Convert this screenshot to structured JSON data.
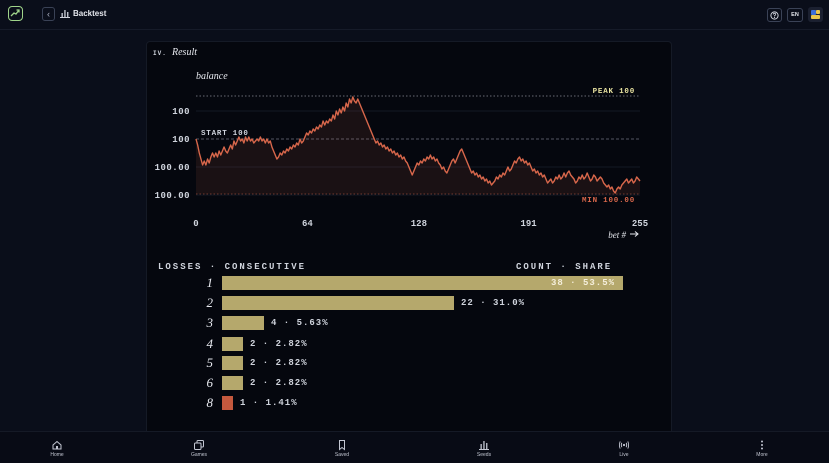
{
  "header": {
    "title": "Backtest",
    "lang": "EN"
  },
  "section": {
    "number": "IV.",
    "title": "Result"
  },
  "chart_data": {
    "type": "line",
    "ylabel": "balance",
    "xlabel": "bet #",
    "x_ticks": [
      "0",
      "64",
      "128",
      "191",
      "255"
    ],
    "y_ticks": [
      "100",
      "100",
      "100.00",
      "100.00"
    ],
    "xlim": [
      0,
      255
    ],
    "peak_label": "PEAK 100",
    "start_label": "START 100",
    "min_label": "MIN 100.00",
    "series": [
      {
        "values": [
          0,
          -3,
          -7,
          -10,
          -13,
          -11,
          -13,
          -10,
          -12,
          -9,
          -7,
          -9,
          -7,
          -9,
          -6,
          -8,
          -6,
          -4,
          -6,
          -7,
          -5,
          -3,
          -5,
          -1,
          -3,
          -1,
          1,
          -1,
          0,
          -2,
          1,
          -1,
          1,
          -1,
          0,
          -2,
          -1,
          0,
          -1,
          1,
          -1,
          0,
          -2,
          0,
          -2,
          -1,
          -4,
          -6,
          -8,
          -10,
          -9,
          -7,
          -8,
          -6,
          -7,
          -5,
          -6,
          -4,
          -5,
          -3,
          -4,
          -2,
          -3,
          0,
          -2,
          -1,
          1,
          3,
          2,
          4,
          3,
          5,
          4,
          6,
          5,
          7,
          6,
          9,
          7,
          9,
          8,
          10,
          9,
          12,
          10,
          14,
          12,
          15,
          13,
          16,
          14,
          18,
          16,
          20,
          18,
          21,
          19,
          18,
          20,
          18,
          16,
          14,
          12,
          10,
          8,
          6,
          4,
          2,
          0,
          -2,
          -1,
          -3,
          -2,
          -4,
          -3,
          -5,
          -4,
          -6,
          -5,
          -7,
          -6,
          -8,
          -7,
          -9,
          -8,
          -10,
          -9,
          -11,
          -12,
          -14,
          -16,
          -18,
          -16,
          -14,
          -12,
          -13,
          -11,
          -12,
          -10,
          -11,
          -9,
          -10,
          -8,
          -10,
          -9,
          -11,
          -10,
          -12,
          -13,
          -15,
          -14,
          -16,
          -17,
          -15,
          -13,
          -11,
          -10,
          -12,
          -10,
          -8,
          -6,
          -5,
          -7,
          -9,
          -11,
          -13,
          -15,
          -17,
          -16,
          -18,
          -17,
          -19,
          -18,
          -20,
          -19,
          -21,
          -20,
          -22,
          -21,
          -23,
          -22,
          -21,
          -19,
          -20,
          -18,
          -19,
          -17,
          -18,
          -16,
          -14,
          -16,
          -15,
          -13,
          -11,
          -12,
          -10,
          -9,
          -11,
          -10,
          -12,
          -11,
          -13,
          -12,
          -14,
          -16,
          -15,
          -17,
          -16,
          -18,
          -17,
          -19,
          -18,
          -20,
          -22,
          -21,
          -20,
          -22,
          -21,
          -19,
          -20,
          -18,
          -20,
          -19,
          -17,
          -19,
          -17,
          -16,
          -18,
          -19,
          -20,
          -22,
          -21,
          -19,
          -20,
          -18,
          -20,
          -19,
          -17,
          -19,
          -21,
          -20,
          -18,
          -19,
          -21,
          -20,
          -19,
          -20,
          -22,
          -23,
          -24,
          -23,
          -25,
          -24,
          -26,
          -27,
          -25,
          -24,
          -25,
          -23,
          -22,
          -21,
          -20,
          -22,
          -21,
          -20,
          -22,
          -21,
          -19,
          -20,
          -21
        ]
      }
    ]
  },
  "streaks": {
    "left_header": "LOSSES · CONSECUTIVE",
    "right_header": "COUNT · SHARE",
    "rows": [
      {
        "n": "1",
        "label": "38 · 53.5%",
        "count": 38,
        "inside": true,
        "red": false
      },
      {
        "n": "2",
        "label": "22 · 31.0%",
        "count": 22,
        "inside": false,
        "red": false
      },
      {
        "n": "3",
        "label": "4 · 5.63%",
        "count": 4,
        "inside": false,
        "red": false
      },
      {
        "n": "4",
        "label": "2 · 2.82%",
        "count": 2,
        "inside": false,
        "red": false
      },
      {
        "n": "5",
        "label": "2 · 2.82%",
        "count": 2,
        "inside": false,
        "red": false
      },
      {
        "n": "6",
        "label": "2 · 2.82%",
        "count": 2,
        "inside": false,
        "red": false
      },
      {
        "n": "8",
        "label": "1 · 1.41%",
        "count": 1,
        "inside": false,
        "red": true
      }
    ]
  },
  "nav": {
    "items": [
      {
        "label": "Home",
        "icon": "home-icon"
      },
      {
        "label": "Games",
        "icon": "games-icon"
      },
      {
        "label": "Saved",
        "icon": "bookmark-icon"
      },
      {
        "label": "Seeds",
        "icon": "bar-chart-icon"
      },
      {
        "label": "Live",
        "icon": "broadcast-icon"
      },
      {
        "label": "More",
        "icon": "more-icon"
      }
    ]
  },
  "colors": {
    "line": "#d8674b",
    "bar": "#b5a86c",
    "bar_red": "#c5593e",
    "peak": "#e8e2a0"
  }
}
